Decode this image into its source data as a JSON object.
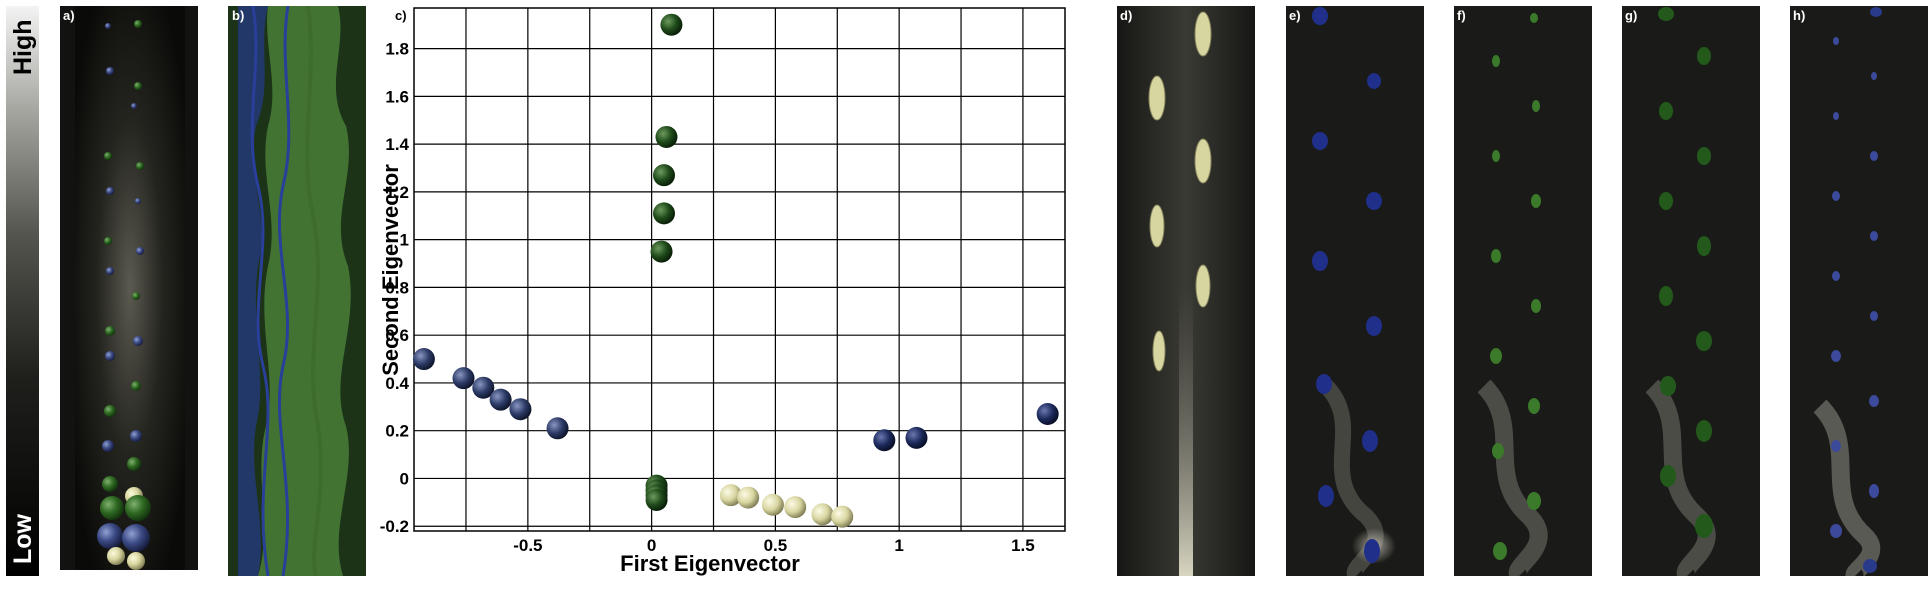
{
  "colorbar": {
    "high_label": "High",
    "low_label": "Low"
  },
  "panels": [
    {
      "id": "a",
      "label": "a)"
    },
    {
      "id": "b",
      "label": "b)"
    },
    {
      "id": "c",
      "label": "c)"
    },
    {
      "id": "d",
      "label": "d)"
    },
    {
      "id": "e",
      "label": "e)"
    },
    {
      "id": "f",
      "label": "f)"
    },
    {
      "id": "g",
      "label": "g)"
    },
    {
      "id": "h",
      "label": "h)"
    }
  ],
  "colors": {
    "dark_green": "#1e4a1a",
    "navy": "#1c2a5c",
    "blue_gray": "#2c3a66",
    "cream": "#d8d6a0",
    "green_wash": "#4f8a3c",
    "blue_wash": "#2a3f9a"
  },
  "chart_data": {
    "type": "scatter",
    "xlabel": "First Eigenvector",
    "ylabel": "Second Eigenvector",
    "xlim": [
      -0.96,
      1.67
    ],
    "ylim": [
      -0.22,
      1.97
    ],
    "xticks": [
      -0.5,
      0,
      0.5,
      1,
      1.5
    ],
    "xtick_labels": [
      "-0.5",
      "0",
      "0.5",
      "1",
      "1.5"
    ],
    "yticks": [
      -0.2,
      0,
      0.2,
      0.4,
      0.6,
      0.8,
      1,
      1.2,
      1.4,
      1.6,
      1.8
    ],
    "ytick_labels": [
      "-0.2",
      "0",
      "0.2",
      "0.4",
      "0.6",
      "0.8",
      "1",
      "1.2",
      "1.4",
      "1.6",
      "1.8"
    ],
    "grid": true,
    "x_gridlines": [
      -0.75,
      -0.5,
      -0.25,
      0,
      0.25,
      0.5,
      0.75,
      1,
      1.25,
      1.5
    ],
    "series": [
      {
        "color": "#1e4a1a",
        "points": [
          [
            0.08,
            1.9
          ],
          [
            0.06,
            1.43
          ],
          [
            0.05,
            1.27
          ],
          [
            0.05,
            1.11
          ],
          [
            0.04,
            0.95
          ],
          [
            0.02,
            -0.03
          ],
          [
            0.02,
            -0.05
          ],
          [
            0.02,
            -0.07
          ],
          [
            0.02,
            -0.09
          ]
        ]
      },
      {
        "color": "#2c3a66",
        "points": [
          [
            -0.92,
            0.5
          ],
          [
            -0.76,
            0.42
          ],
          [
            -0.68,
            0.38
          ],
          [
            -0.61,
            0.33
          ],
          [
            -0.53,
            0.29
          ],
          [
            -0.38,
            0.21
          ]
        ]
      },
      {
        "color": "#1c2a5c",
        "points": [
          [
            0.94,
            0.16
          ],
          [
            1.07,
            0.17
          ],
          [
            1.6,
            0.27
          ]
        ]
      },
      {
        "color": "#d8d6a0",
        "points": [
          [
            0.32,
            -0.07
          ],
          [
            0.39,
            -0.08
          ],
          [
            0.49,
            -0.11
          ],
          [
            0.58,
            -0.12
          ],
          [
            0.69,
            -0.15
          ],
          [
            0.77,
            -0.16
          ]
        ]
      }
    ]
  }
}
